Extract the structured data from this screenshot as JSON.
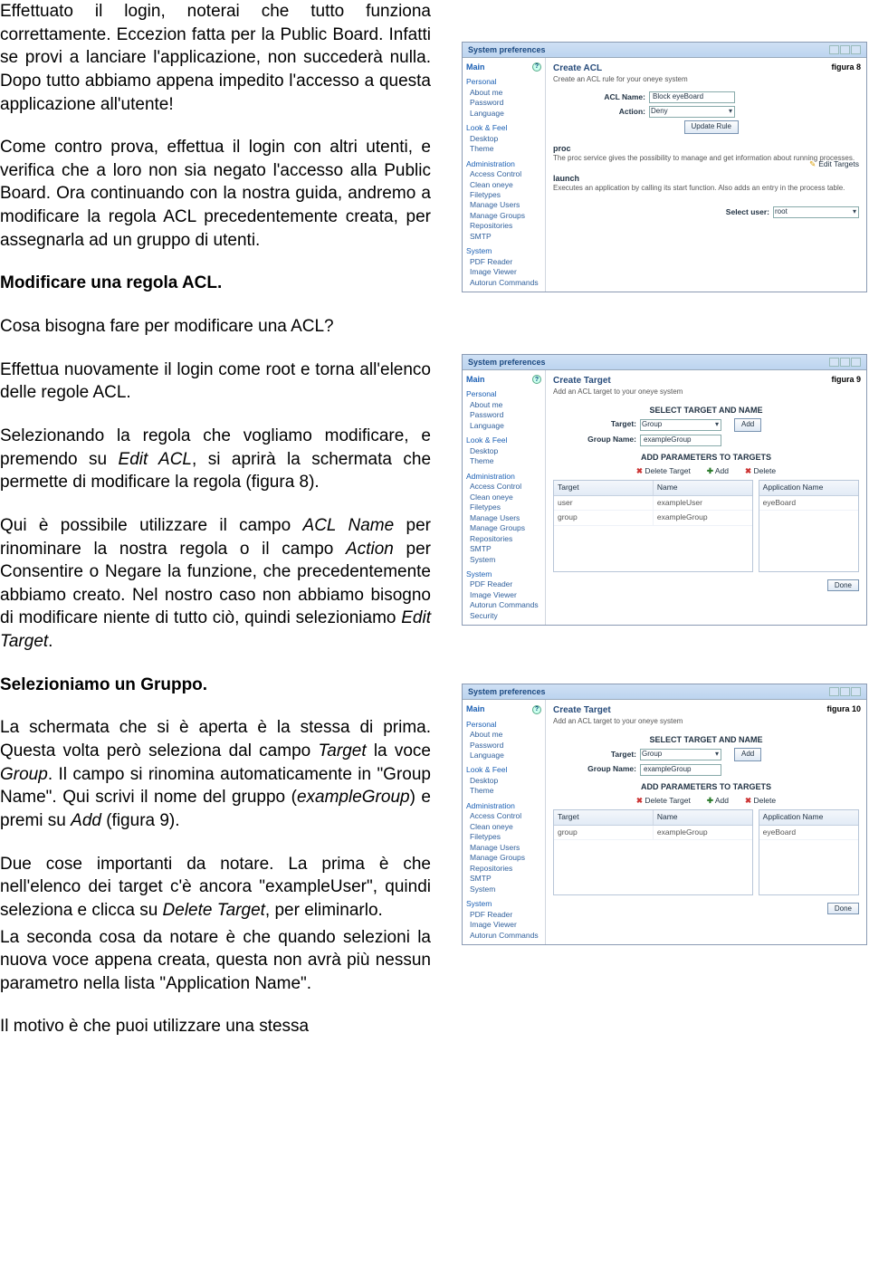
{
  "text": {
    "p1": "Effettuato il login, noterai che tutto funziona correttamente. Eccezion fatta per la Public Board. Infatti se provi a lanciare l'applicazione, non succederà nulla. Dopo tutto abbiamo appena impedito l'accesso a questa applicazione all'utente!",
    "p2a": "Come contro prova, effettua il login con altri utenti, e verifica che a loro non sia negato l'accesso alla Public Board. Ora continuando con la nostra guida, andremo a modificare la regola ACL precedentemente creata, per assegnarla ad un gruppo di utenti.",
    "h1": "Modificare una regola ACL.",
    "p3": "Cosa bisogna fare per modificare una ACL?",
    "p4": "Effettua nuovamente il login come root e torna all'elenco delle regole ACL.",
    "p5a": "Selezionando la regola che vogliamo modificare, e premendo su ",
    "p5b": "Edit ACL",
    "p5c": ", si aprirà la schermata che permette di modificare la regola (figura 8).",
    "p6a": "Qui è possibile utilizzare il campo ",
    "p6b": "ACL Name",
    "p6c": " per rinominare la nostra regola o il campo ",
    "p6d": "Action",
    "p6e": " per Consentire o Negare la funzione, che precedentemente abbiamo creato. Nel nostro caso non abbiamo bisogno di modificare niente di tutto ciò, quindi selezioniamo ",
    "p6f": "Edit Target",
    "p6g": ".",
    "h2": "Selezioniamo un Gruppo.",
    "p7a": "La schermata che si è aperta è la stessa di prima. Questa volta però seleziona dal campo ",
    "p7b": "Target",
    "p7c": " la voce ",
    "p7d": "Group",
    "p7e": ". Il campo si rinomina automaticamente in \"Group Name\". Qui scrivi il nome del gruppo (",
    "p7f": "exampleGroup",
    "p7g": ") e premi su ",
    "p7h": "Add",
    "p7i": " (figura 9).",
    "p8a": "Due cose importanti da notare. La prima è che nell'elenco dei target c'è ancora \"exampleUser\", quindi seleziona e clicca su ",
    "p8b": "Delete Target",
    "p8c": ", per eliminarlo.",
    "p9": "La seconda cosa da notare è che quando selezioni la nuova voce appena creata, questa non avrà più nessun parametro nella lista \"Application Name\".",
    "p10": "Il motivo è che puoi utilizzare una stessa"
  },
  "panels": {
    "title": "System preferences",
    "sidebar": {
      "main": "Main",
      "sections": {
        "personal": "Personal",
        "look": "Look & Feel",
        "admin": "Administration",
        "system": "System"
      },
      "items": {
        "about": "About me",
        "password": "Password",
        "language": "Language",
        "desktop": "Desktop",
        "theme": "Theme",
        "access": "Access Control",
        "clean": "Clean oneye",
        "filetypes": "Filetypes",
        "musers": "Manage Users",
        "mgroups": "Manage Groups",
        "repos": "Repositories",
        "smtp": "SMTP",
        "sysitem": "System",
        "pdf": "PDF Reader",
        "imgv": "Image Viewer",
        "autorun": "Autorun Commands",
        "security": "Security"
      }
    },
    "fig8": {
      "label": "figura 8",
      "head": "Create ACL",
      "sub": "Create an ACL rule for your oneye system",
      "aclname_lbl": "ACL Name:",
      "aclname_val": "Block eyeBoard",
      "action_lbl": "Action:",
      "action_val": "Deny",
      "update": "Update Rule",
      "edit_targets": "Edit Targets",
      "svc1_name": "proc",
      "svc1_desc": "The proc service gives the possibility to manage and get information about running processes.",
      "svc2_name": "launch",
      "svc2_desc": "Executes an application by calling its start function. Also adds an entry in the process table.",
      "seluser_lbl": "Select user:",
      "seluser_val": "root"
    },
    "figCommon": {
      "head": "Create Target",
      "sub": "Add an ACL target to your oneye system",
      "select_h": "SELECT TARGET AND NAME",
      "target_lbl": "Target:",
      "target_val": "Group",
      "gname_lbl": "Group Name:",
      "gname_val": "exampleGroup",
      "add": "Add",
      "params_h": "ADD PARAMETERS TO TARGETS",
      "del_t": "Delete Target",
      "addp": "Add",
      "delp": "Delete",
      "th_target": "Target",
      "th_name": "Name",
      "th_app": "Application Name",
      "done": "Done"
    },
    "fig9": {
      "label": "figura 9",
      "rows": [
        {
          "t": "user",
          "n": "exampleUser",
          "a": "eyeBoard"
        },
        {
          "t": "group",
          "n": "exampleGroup",
          "a": ""
        }
      ]
    },
    "fig10": {
      "label": "figura 10",
      "rows": [
        {
          "t": "group",
          "n": "exampleGroup",
          "a": "eyeBoard"
        }
      ]
    }
  }
}
